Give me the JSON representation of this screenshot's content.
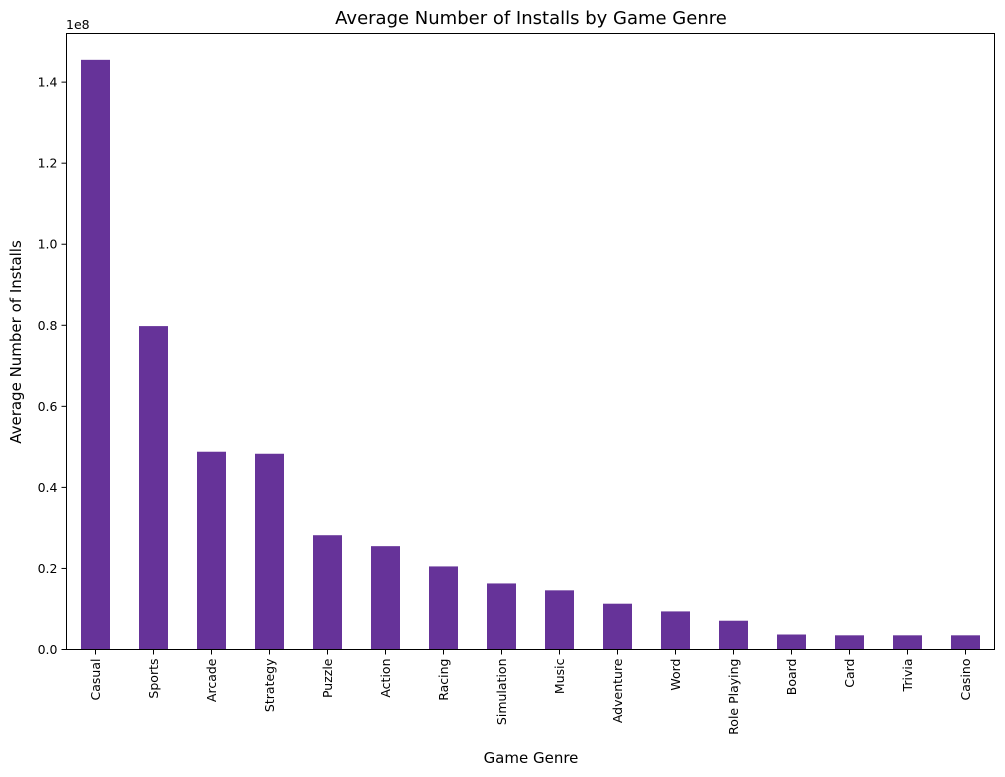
{
  "chart_data": {
    "type": "bar",
    "title": "Average Number of Installs by Game Genre",
    "xlabel": "Game Genre",
    "ylabel": "Average Number of Installs",
    "y_offset_label": "1e8",
    "y_scale": 100000000,
    "ylim": [
      0,
      152000000
    ],
    "yticks": [
      0,
      20000000,
      40000000,
      60000000,
      80000000,
      100000000,
      120000000,
      140000000
    ],
    "ytick_labels": [
      "0.0",
      "0.2",
      "0.4",
      "0.6",
      "0.8",
      "1.0",
      "1.2",
      "1.4"
    ],
    "categories": [
      "Casual",
      "Sports",
      "Arcade",
      "Strategy",
      "Puzzle",
      "Action",
      "Racing",
      "Simulation",
      "Music",
      "Adventure",
      "Word",
      "Role Playing",
      "Board",
      "Card",
      "Trivia",
      "Casino"
    ],
    "values": [
      145500000,
      79800000,
      48800000,
      48300000,
      28200000,
      25500000,
      20500000,
      16300000,
      14600000,
      11300000,
      9400000,
      7100000,
      3700000,
      3500000,
      3500000,
      3500000
    ],
    "bar_color": "#663399",
    "grid": false,
    "legend": "none"
  }
}
